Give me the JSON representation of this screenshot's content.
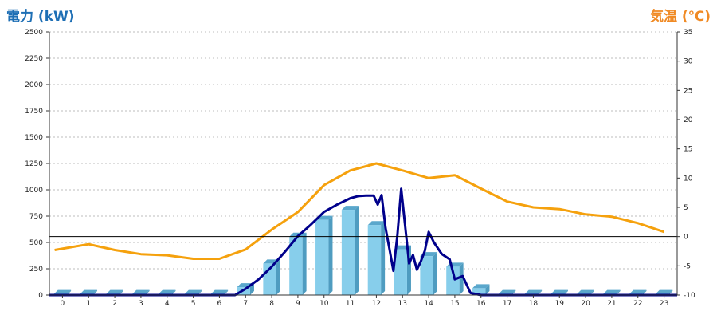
{
  "chart_data": {
    "type": "bar",
    "left_axis_title": "電力 (kW)",
    "right_axis_title": "気温 (℃)",
    "left_ylim": [
      0,
      2500
    ],
    "left_ticks": [
      0,
      250,
      500,
      750,
      1000,
      1250,
      1500,
      1750,
      2000,
      2250,
      2500
    ],
    "right_ylim": [
      -10,
      35
    ],
    "right_ticks": [
      -10,
      -5,
      0,
      5,
      10,
      15,
      20,
      25,
      30,
      35
    ],
    "categories": [
      "0",
      "1",
      "2",
      "3",
      "4",
      "5",
      "6",
      "7",
      "8",
      "9",
      "10",
      "11",
      "12",
      "13",
      "14",
      "15",
      "16",
      "17",
      "18",
      "19",
      "20",
      "21",
      "22",
      "23"
    ],
    "grid": true,
    "series": [
      {
        "type": "bar",
        "axis": "left",
        "color": "#87ceeb",
        "values": [
          10,
          10,
          10,
          10,
          10,
          10,
          10,
          75,
          300,
          555,
          715,
          810,
          665,
          435,
          370,
          270,
          65,
          10,
          10,
          10,
          10,
          10,
          10,
          10
        ]
      },
      {
        "type": "line",
        "axis": "left",
        "color": "#00008b",
        "points": [
          [
            -0.5,
            0
          ],
          [
            6.6,
            0
          ],
          [
            7,
            60
          ],
          [
            7.5,
            150
          ],
          [
            8,
            270
          ],
          [
            8.5,
            410
          ],
          [
            9,
            560
          ],
          [
            9.5,
            670
          ],
          [
            10,
            790
          ],
          [
            10.5,
            860
          ],
          [
            11,
            920
          ],
          [
            11.3,
            940
          ],
          [
            11.6,
            945
          ],
          [
            11.9,
            945
          ],
          [
            12.05,
            860
          ],
          [
            12.2,
            950
          ],
          [
            12.35,
            640
          ],
          [
            12.5,
            440
          ],
          [
            12.65,
            230
          ],
          [
            12.8,
            560
          ],
          [
            12.95,
            1010
          ],
          [
            13.1,
            660
          ],
          [
            13.25,
            300
          ],
          [
            13.4,
            380
          ],
          [
            13.55,
            240
          ],
          [
            13.7,
            320
          ],
          [
            13.85,
            420
          ],
          [
            14,
            600
          ],
          [
            14.2,
            500
          ],
          [
            14.5,
            390
          ],
          [
            14.8,
            340
          ],
          [
            15,
            150
          ],
          [
            15.3,
            180
          ],
          [
            15.6,
            20
          ],
          [
            16,
            0
          ],
          [
            23.5,
            0
          ]
        ]
      },
      {
        "type": "line",
        "axis": "right",
        "color": "#f5a10d",
        "x": [
          -0.3,
          1,
          2,
          3,
          4,
          5,
          6,
          7,
          8,
          9,
          10,
          11,
          12,
          13,
          14,
          15,
          16,
          17,
          18,
          19,
          20,
          21,
          22,
          23
        ],
        "values": [
          -2.3,
          -1.3,
          -2.3,
          -3.0,
          -3.2,
          -3.8,
          -3.8,
          -2.2,
          1.2,
          4.2,
          8.8,
          11.3,
          12.5,
          11.3,
          10.0,
          10.5,
          8.2,
          6.0,
          5.0,
          4.7,
          3.8,
          3.4,
          2.3,
          0.8
        ]
      }
    ]
  }
}
